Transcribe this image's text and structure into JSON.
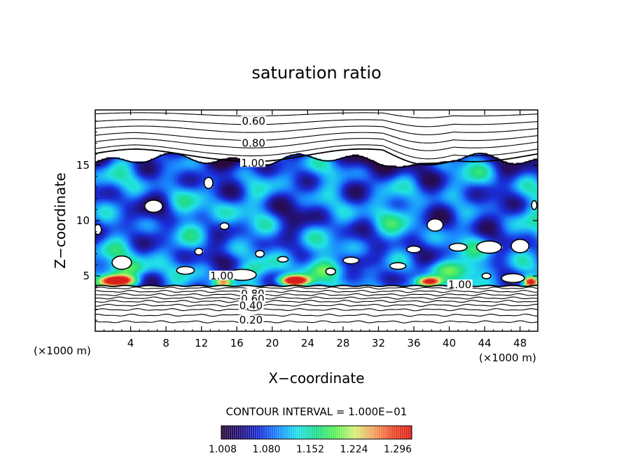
{
  "chart_data": {
    "type": "heatmap",
    "title": "saturation ratio",
    "xlabel": "X−coordinate",
    "ylabel": "Z−coordinate",
    "x_unit": "(×1000 m)",
    "z_unit": "(×1000 m)",
    "xlim": [
      0,
      50
    ],
    "ylim": [
      0,
      20
    ],
    "x_ticks": [
      4,
      8,
      12,
      16,
      20,
      24,
      28,
      32,
      36,
      40,
      44,
      48
    ],
    "y_ticks": [
      5,
      10,
      15
    ],
    "contour_interval_label": "CONTOUR INTERVAL = 1.000E−01",
    "contour_interval": 0.1,
    "contour_labels": [
      {
        "text": "0.60",
        "x": 17.9,
        "z": 19.0
      },
      {
        "text": "0.80",
        "x": 17.9,
        "z": 17.0
      },
      {
        "text": "1.00",
        "x": 17.8,
        "z": 15.2
      },
      {
        "text": "1.00",
        "x": 14.3,
        "z": 5.0
      },
      {
        "text": "0.80",
        "x": 17.8,
        "z": 3.4
      },
      {
        "text": "0.60",
        "x": 17.8,
        "z": 2.9
      },
      {
        "text": "0.40",
        "x": 17.6,
        "z": 2.3
      },
      {
        "text": "0.20",
        "x": 17.6,
        "z": 1.0
      },
      {
        "text": "1.00",
        "x": 41.2,
        "z": 4.2
      }
    ],
    "colorbar": {
      "ticks": [
        "1.008",
        "1.080",
        "1.152",
        "1.224",
        "1.296"
      ],
      "min": 1.0,
      "max": 1.33,
      "colors": [
        "#2a0a3a",
        "#22127a",
        "#1a2ed8",
        "#1a8cff",
        "#22e0e8",
        "#1fdc8a",
        "#5ef05a",
        "#d8f078",
        "#f2a060",
        "#ee4a2a",
        "#d9201a"
      ]
    },
    "supersaturated_layer": {
      "z_bottom": 4.1,
      "z_top_mean": 15.5
    },
    "colors": {
      "low": "#220a55",
      "high": "#e61a1a",
      "contour": "#000000",
      "clear": "#ffffff"
    }
  }
}
